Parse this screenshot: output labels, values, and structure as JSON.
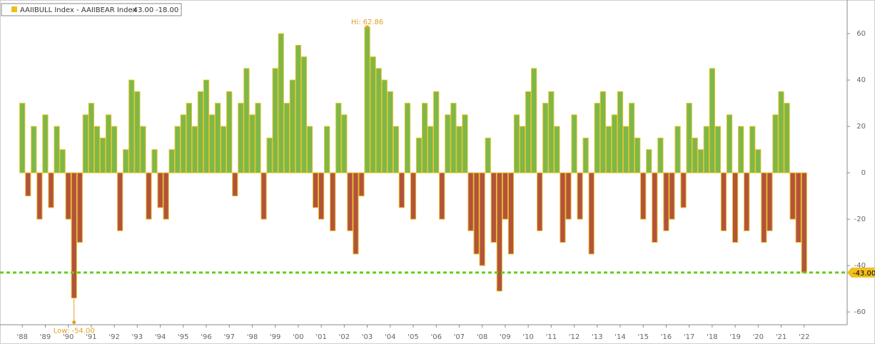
{
  "chart_data": {
    "type": "bar",
    "legend_name": "AAIIBULL Index - AAIIBEAR Index",
    "legend_values": [
      "-43.00",
      "-18.00"
    ],
    "legend_color": "#e8c21a",
    "positive_color": "#7cb84a",
    "negative_color": "#b4523c",
    "edge_color": "#e6c22a",
    "x": [
      1988,
      1988.25,
      1988.5,
      1988.75,
      1989,
      1989.25,
      1989.5,
      1989.75,
      1990,
      1990.25,
      1990.5,
      1990.75,
      1991,
      1991.25,
      1991.5,
      1991.75,
      1992,
      1992.25,
      1992.5,
      1992.75,
      1993,
      1993.25,
      1993.5,
      1993.75,
      1994,
      1994.25,
      1994.5,
      1994.75,
      1995,
      1995.25,
      1995.5,
      1995.75,
      1996,
      1996.25,
      1996.5,
      1996.75,
      1997,
      1997.25,
      1997.5,
      1997.75,
      1998,
      1998.25,
      1998.5,
      1998.75,
      1999,
      1999.25,
      1999.5,
      1999.75,
      2000,
      2000.25,
      2000.5,
      2000.75,
      2001,
      2001.25,
      2001.5,
      2001.75,
      2002,
      2002.25,
      2002.5,
      2002.75,
      2003,
      2003.25,
      2003.5,
      2003.75,
      2004,
      2004.25,
      2004.5,
      2004.75,
      2005,
      2005.25,
      2005.5,
      2005.75,
      2006,
      2006.25,
      2006.5,
      2006.75,
      2007,
      2007.25,
      2007.5,
      2007.75,
      2008,
      2008.25,
      2008.5,
      2008.75,
      2009,
      2009.25,
      2009.5,
      2009.75,
      2010,
      2010.25,
      2010.5,
      2010.75,
      2011,
      2011.25,
      2011.5,
      2011.75,
      2012,
      2012.25,
      2012.5,
      2012.75,
      2013,
      2013.25,
      2013.5,
      2013.75,
      2014,
      2014.25,
      2014.5,
      2014.75,
      2015,
      2015.25,
      2015.5,
      2015.75,
      2016,
      2016.25,
      2016.5,
      2016.75,
      2017,
      2017.25,
      2017.5,
      2017.75,
      2018,
      2018.25,
      2018.5,
      2018.75,
      2019,
      2019.25,
      2019.5,
      2019.75,
      2020,
      2020.25,
      2020.5,
      2020.75,
      2021,
      2021.25,
      2021.5,
      2021.75,
      2022
    ],
    "values": [
      30,
      -10,
      20,
      -20,
      25,
      -15,
      20,
      10,
      -20,
      -54,
      -30,
      25,
      30,
      20,
      15,
      25,
      20,
      -25,
      10,
      40,
      35,
      20,
      -20,
      10,
      -15,
      -20,
      10,
      20,
      25,
      30,
      20,
      35,
      40,
      25,
      30,
      20,
      35,
      -10,
      30,
      45,
      25,
      30,
      -20,
      15,
      45,
      60,
      30,
      40,
      55,
      50,
      20,
      -15,
      -20,
      20,
      -25,
      30,
      25,
      -25,
      -35,
      -10,
      62.86,
      50,
      45,
      40,
      35,
      20,
      -15,
      30,
      -20,
      15,
      30,
      20,
      35,
      -20,
      25,
      30,
      20,
      25,
      -25,
      -35,
      -40,
      15,
      -30,
      -51,
      -20,
      -35,
      25,
      20,
      35,
      45,
      -25,
      30,
      35,
      20,
      -30,
      -20,
      25,
      -20,
      15,
      -35,
      30,
      35,
      20,
      25,
      35,
      20,
      30,
      15,
      -20,
      10,
      -30,
      15,
      -25,
      -20,
      20,
      -15,
      30,
      15,
      10,
      20,
      45,
      20,
      -25,
      25,
      -30,
      20,
      -25,
      20,
      10,
      -30,
      -25,
      25,
      35,
      30,
      -20,
      -30,
      -43
    ],
    "xlim": [
      1987.03,
      2023.87
    ],
    "xticks": [
      {
        "value": 1988,
        "label": "'88"
      },
      {
        "value": 1989,
        "label": "'89"
      },
      {
        "value": 1990,
        "label": "'90"
      },
      {
        "value": 1991,
        "label": "'91"
      },
      {
        "value": 1992,
        "label": "'92"
      },
      {
        "value": 1993,
        "label": "'93"
      },
      {
        "value": 1994,
        "label": "'94"
      },
      {
        "value": 1995,
        "label": "'95"
      },
      {
        "value": 1996,
        "label": "'96"
      },
      {
        "value": 1997,
        "label": "'97"
      },
      {
        "value": 1998,
        "label": "'98"
      },
      {
        "value": 1999,
        "label": "'99"
      },
      {
        "value": 2000,
        "label": "'00"
      },
      {
        "value": 2001,
        "label": "'01"
      },
      {
        "value": 2002,
        "label": "'02"
      },
      {
        "value": 2003,
        "label": "'03"
      },
      {
        "value": 2004,
        "label": "'04"
      },
      {
        "value": 2005,
        "label": "'05"
      },
      {
        "value": 2006,
        "label": "'06"
      },
      {
        "value": 2007,
        "label": "'07"
      },
      {
        "value": 2008,
        "label": "'08"
      },
      {
        "value": 2009,
        "label": "'09"
      },
      {
        "value": 2010,
        "label": "'10"
      },
      {
        "value": 2011,
        "label": "'11"
      },
      {
        "value": 2012,
        "label": "'12"
      },
      {
        "value": 2013,
        "label": "'13"
      },
      {
        "value": 2014,
        "label": "'14"
      },
      {
        "value": 2015,
        "label": "'15"
      },
      {
        "value": 2016,
        "label": "'16"
      },
      {
        "value": 2017,
        "label": "'17"
      },
      {
        "value": 2018,
        "label": "'18"
      },
      {
        "value": 2019,
        "label": "'19"
      },
      {
        "value": 2020,
        "label": "'20"
      },
      {
        "value": 2021,
        "label": "'21"
      },
      {
        "value": 2022,
        "label": "'22"
      }
    ],
    "ylim": [
      -65.5,
      74.5
    ],
    "yticks": [
      -60,
      -40,
      -20,
      0,
      20,
      40,
      60
    ],
    "high_label": "Hi: 62.86",
    "low_label": "Low: -54.00",
    "reference_line": {
      "value": -43,
      "label": "-43.00",
      "color": "#66cc1a"
    }
  }
}
